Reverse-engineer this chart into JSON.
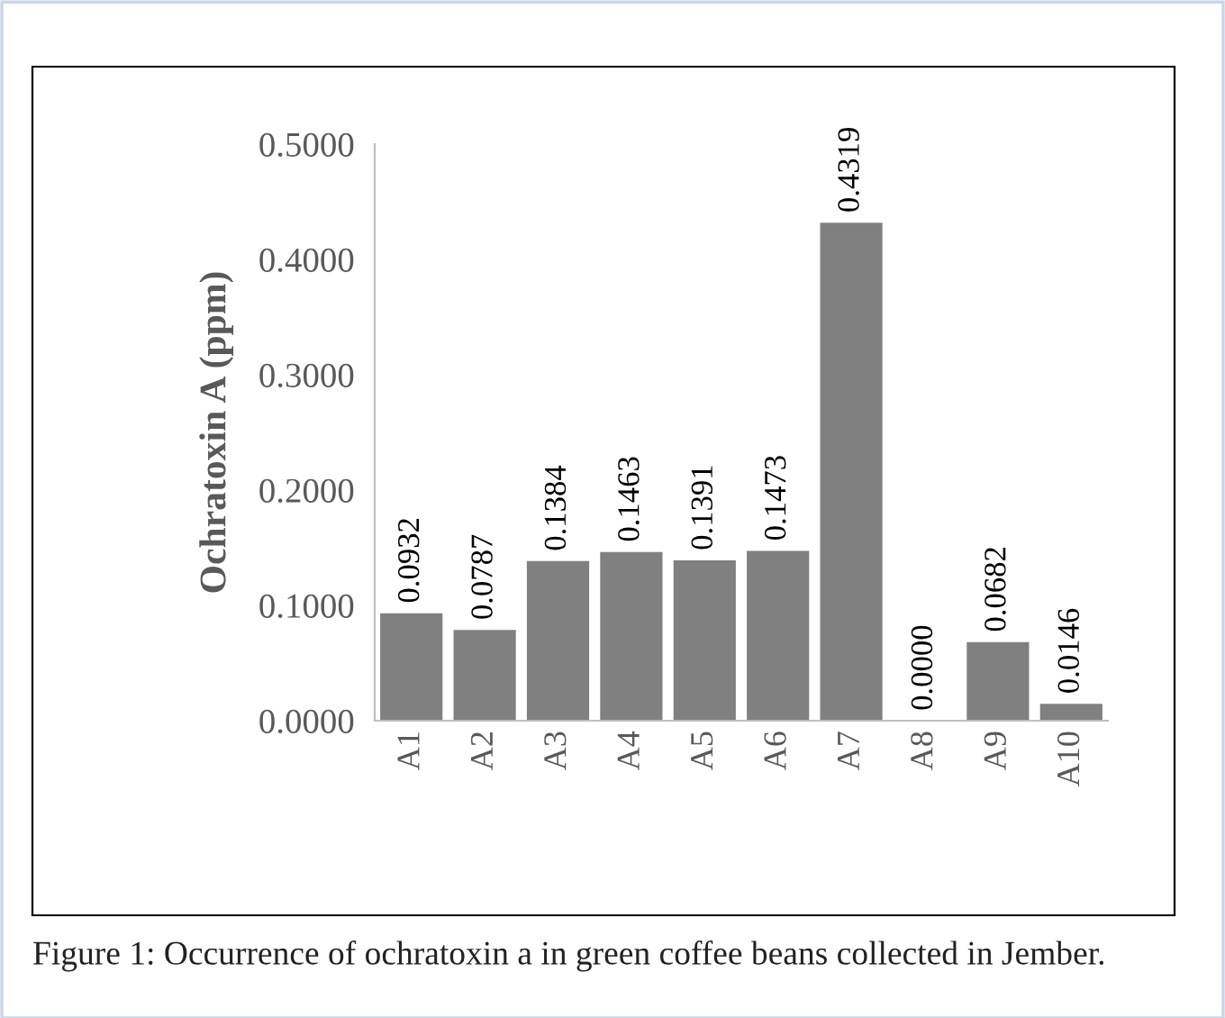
{
  "chart_data": {
    "type": "bar",
    "ylabel": "Ochratoxin A (ppm)",
    "categories": [
      "A1",
      "A2",
      "A3",
      "A4",
      "A5",
      "A6",
      "A7",
      "A8",
      "A9",
      "A10"
    ],
    "values": [
      0.0932,
      0.0787,
      0.1384,
      0.1463,
      0.1391,
      0.1473,
      0.4319,
      0.0,
      0.0682,
      0.0146
    ],
    "value_labels": [
      "0.0932",
      "0.0787",
      "0.1384",
      "0.1463",
      "0.1391",
      "0.1473",
      "0.4319",
      "0.0000",
      "0.0682",
      "0.0146"
    ],
    "color": "#808080",
    "ylim": [
      0,
      0.5
    ],
    "yticks": [
      {
        "value": 0,
        "label": "0.0000"
      },
      {
        "value": 0.1,
        "label": "0.1000"
      },
      {
        "value": 0.2,
        "label": "0.2000"
      },
      {
        "value": 0.3,
        "label": "0.3000"
      },
      {
        "value": 0.4,
        "label": "0.4000"
      },
      {
        "value": 0.5,
        "label": "0.5000"
      }
    ],
    "grid": false,
    "legend": false,
    "annotations": [
      "Figure 1: Occurrence of ochratoxin a in green coffee beans collected in Jember."
    ]
  }
}
